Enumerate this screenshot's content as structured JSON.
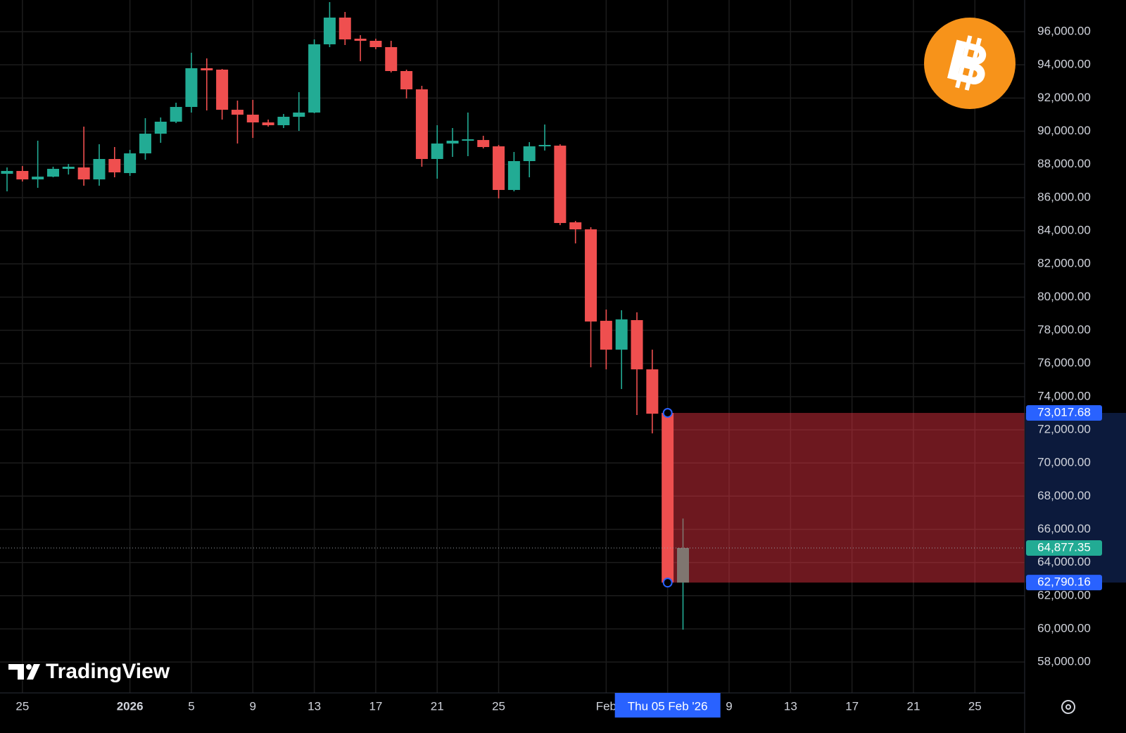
{
  "chart_data": {
    "type": "candlestick",
    "watermark": "TradingView",
    "up_color": "#22ab94",
    "down_color": "#ef4f4f",
    "categories": [
      null,
      "25",
      null,
      null,
      null,
      null,
      null,
      null,
      "2026",
      null,
      null,
      null,
      "5",
      null,
      null,
      null,
      "9",
      null,
      null,
      null,
      "13",
      null,
      null,
      null,
      "17",
      null,
      null,
      null,
      "21",
      null,
      null,
      null,
      "25",
      null,
      null,
      null,
      null,
      null,
      null,
      "Feb",
      null,
      null,
      null,
      "Thu 05 Feb '26",
      null,
      null,
      null,
      "9",
      null,
      null,
      null,
      "13",
      null,
      null,
      null,
      "17",
      null,
      null,
      null,
      "21",
      null,
      null,
      null,
      "25",
      null,
      null,
      null
    ],
    "open": [
      87433,
      87603,
      87094,
      87260,
      87730,
      87815,
      87094,
      88324,
      87475,
      88663,
      89850,
      90572,
      91462,
      93795,
      93710,
      91292,
      90996,
      90529,
      90360,
      90869,
      91123,
      95237,
      96848,
      95576,
      95449,
      95067,
      93625,
      92522,
      88324,
      89257,
      89426,
      89468,
      89087,
      86458,
      88197,
      89087,
      89129,
      84507,
      84083,
      78570,
      76831,
      78612,
      75643,
      73017.68,
      62790.16,
      null,
      null,
      null,
      null,
      null,
      null,
      null,
      null,
      null,
      null,
      null,
      null,
      null,
      null,
      null,
      null,
      null,
      null,
      null,
      null,
      null,
      null
    ],
    "high": [
      87815,
      87900,
      89426,
      87857,
      88027,
      90275,
      89214,
      89045,
      88875,
      90784,
      90826,
      91717,
      94728,
      94388,
      93752,
      91844,
      91886,
      90699,
      91038,
      92353,
      95534,
      97781,
      97187,
      95788,
      95576,
      95449,
      93710,
      92734,
      90360,
      90190,
      91123,
      89723,
      89172,
      88748,
      89341,
      90402,
      89214,
      84592,
      84210,
      79248,
      79206,
      79078,
      76831,
      73017.68,
      66653,
      null,
      null,
      null,
      null,
      null,
      null,
      null,
      null,
      null,
      null,
      null,
      null,
      null,
      null,
      null,
      null,
      null,
      null,
      null,
      null,
      null,
      null
    ],
    "low": [
      86373,
      86967,
      86585,
      87221,
      87390,
      86713,
      86713,
      87221,
      87306,
      88281,
      89299,
      90487,
      91123,
      91250,
      90699,
      89257,
      89596,
      90275,
      90190,
      90020,
      91080,
      95067,
      95194,
      94219,
      94940,
      93540,
      91971,
      87857,
      87136,
      88451,
      88494,
      88960,
      85949,
      86373,
      87221,
      88833,
      84337,
      83235,
      75770,
      75643,
      74456,
      72887,
      71784,
      62500,
      59952,
      null,
      null,
      null,
      null,
      null,
      null,
      null,
      null,
      null,
      null,
      null,
      null,
      null,
      null,
      null,
      null,
      null,
      null,
      null,
      null,
      null,
      null
    ],
    "close": [
      87603,
      87094,
      87260,
      87730,
      87857,
      87094,
      88324,
      87518,
      88663,
      89850,
      90572,
      91462,
      93795,
      93667,
      91292,
      90996,
      90529,
      90360,
      90869,
      91123,
      95237,
      96848,
      95534,
      95449,
      95067,
      93625,
      92522,
      88324,
      89257,
      89426,
      89511,
      89045,
      86458,
      88197,
      89087,
      89172,
      84465,
      84083,
      78527,
      76831,
      78655,
      75643,
      72971,
      62790.16,
      64877.35,
      null,
      null,
      null,
      null,
      null,
      null,
      null,
      null,
      null,
      null,
      null,
      null,
      null,
      null,
      null,
      null,
      null,
      null,
      null,
      null,
      null,
      null
    ],
    "ylim": [
      56140,
      97908
    ],
    "yticks": [
      {
        "value": 58000,
        "label": "58,000.00"
      },
      {
        "value": 60000,
        "label": "60,000.00"
      },
      {
        "value": 62000,
        "label": "62,000.00"
      },
      {
        "value": 64000,
        "label": "64,000.00"
      },
      {
        "value": 66000,
        "label": "66,000.00"
      },
      {
        "value": 68000,
        "label": "68,000.00"
      },
      {
        "value": 70000,
        "label": "70,000.00"
      },
      {
        "value": 72000,
        "label": "72,000.00"
      },
      {
        "value": 74000,
        "label": "74,000.00"
      },
      {
        "value": 76000,
        "label": "76,000.00"
      },
      {
        "value": 78000,
        "label": "78,000.00"
      },
      {
        "value": 80000,
        "label": "80,000.00"
      },
      {
        "value": 82000,
        "label": "82,000.00"
      },
      {
        "value": 84000,
        "label": "84,000.00"
      },
      {
        "value": 86000,
        "label": "86,000.00"
      },
      {
        "value": 88000,
        "label": "88,000.00"
      },
      {
        "value": 90000,
        "label": "90,000.00"
      },
      {
        "value": 92000,
        "label": "92,000.00"
      },
      {
        "value": 94000,
        "label": "94,000.00"
      },
      {
        "value": 96000,
        "label": "96,000.00"
      }
    ],
    "grid": true,
    "range": {
      "color": "#f23645",
      "top": {
        "value": 73017.68,
        "label": "73,017.68"
      },
      "bottom": {
        "value": 62790.16,
        "label": "62,790.16"
      }
    },
    "last_price": {
      "value": 64877.35,
      "label": "64,877.35",
      "color": "#22ab94"
    }
  }
}
